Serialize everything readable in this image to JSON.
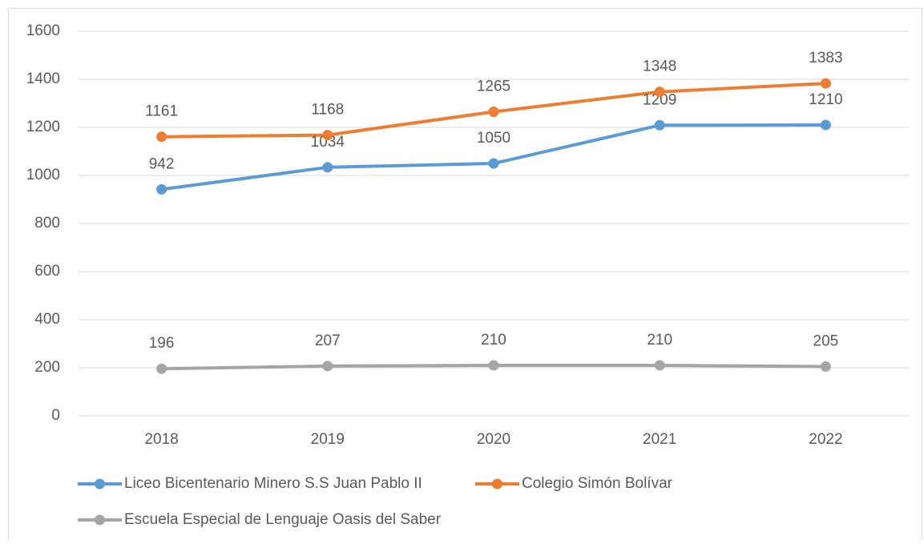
{
  "chart_data": {
    "type": "line",
    "categories": [
      "2018",
      "2019",
      "2020",
      "2021",
      "2022"
    ],
    "series": [
      {
        "name": "Liceo Bicentenario Minero S.S Juan Pablo II",
        "color": "#5b9bd5",
        "values": [
          942,
          1034,
          1050,
          1209,
          1210
        ]
      },
      {
        "name": "Colegio Simón Bolívar",
        "color": "#ed7d31",
        "values": [
          1161,
          1168,
          1265,
          1348,
          1383
        ]
      },
      {
        "name": "Escuela Especial de Lenguaje Oasis del Saber",
        "color": "#a5a5a5",
        "values": [
          196,
          207,
          210,
          210,
          205
        ]
      }
    ],
    "ylim": [
      0,
      1600
    ],
    "yticks": [
      0,
      200,
      400,
      600,
      800,
      1000,
      1200,
      1400,
      1600
    ],
    "grid": true
  }
}
